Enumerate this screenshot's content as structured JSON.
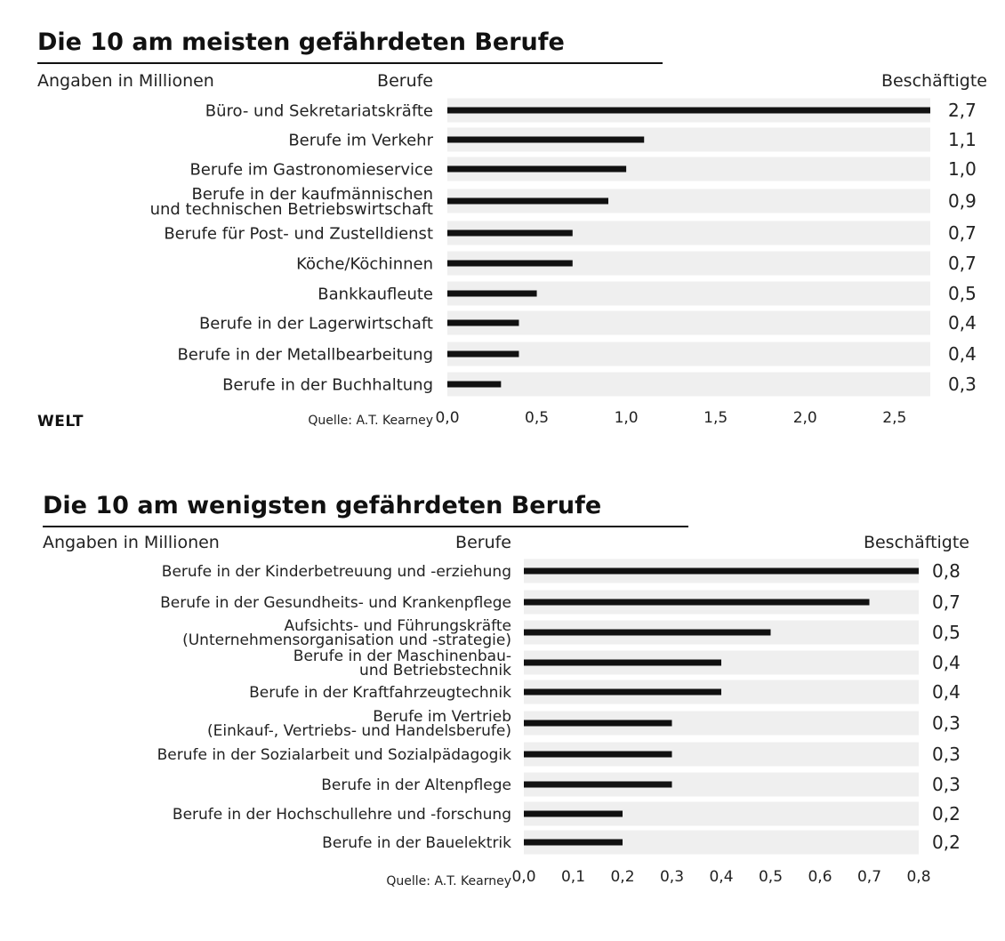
{
  "brand": {
    "logo": "WELT"
  },
  "chart_data": [
    {
      "type": "bar",
      "orientation": "horizontal",
      "title": "Die 10 am meisten gefährdeten Berufe",
      "unit_label": "Angaben in Millionen",
      "category_header": "Berufe",
      "value_header": "Beschäftigte",
      "source": "Quelle: A.T. Kearney",
      "categories": [
        "Büro- und Sekretariatskräfte",
        "Berufe im Verkehr",
        "Berufe im Gastronomieservice",
        "Berufe in der kaufmännischen\nund technischen Betriebswirtschaft",
        "Berufe für Post- und Zustelldienst",
        "Köche/Köchinnen",
        "Bankkaufleute",
        "Berufe in der Lagerwirtschaft",
        "Berufe in der Metallbearbeitung",
        "Berufe in der Buchhaltung"
      ],
      "values": [
        2.7,
        1.1,
        1.0,
        0.9,
        0.7,
        0.7,
        0.5,
        0.4,
        0.4,
        0.3
      ],
      "value_labels": [
        "2,7",
        "1,1",
        "1,0",
        "0,9",
        "0,7",
        "0,7",
        "0,5",
        "0,4",
        "0,4",
        "0,3"
      ],
      "xlim": [
        0,
        2.7
      ],
      "xticks": [
        0,
        0.5,
        1.0,
        1.5,
        2.0,
        2.5
      ],
      "xtick_labels": [
        "0,0",
        "0,5",
        "1,0",
        "1,5",
        "2,0",
        "2,5"
      ],
      "colors": {
        "bar": "#111111",
        "track": "#efefef"
      }
    },
    {
      "type": "bar",
      "orientation": "horizontal",
      "title": "Die 10 am wenigsten gefährdeten Berufe",
      "unit_label": "Angaben in Millionen",
      "category_header": "Berufe",
      "value_header": "Beschäftigte",
      "source": "Quelle: A.T. Kearney",
      "categories": [
        "Berufe in der Kinderbetreuung und -erziehung",
        "Berufe in der Gesundheits- und Krankenpflege",
        "Aufsichts- und Führungskräfte\n(Unternehmensorganisation und -strategie)",
        "Berufe in der Maschinenbau-\nund Betriebstechnik",
        "Berufe in der Kraftfahrzeugtechnik",
        "Berufe im Vertrieb\n(Einkauf-, Vertriebs- und Handelsberufe)",
        "Berufe in der Sozialarbeit und Sozialpädagogik",
        "Berufe in der Altenpflege",
        "Berufe in der Hochschullehre und -forschung",
        "Berufe in der Bauelektrik"
      ],
      "values": [
        0.8,
        0.7,
        0.5,
        0.4,
        0.4,
        0.3,
        0.3,
        0.3,
        0.2,
        0.2
      ],
      "value_labels": [
        "0,8",
        "0,7",
        "0,5",
        "0,4",
        "0,4",
        "0,3",
        "0,3",
        "0,3",
        "0,2",
        "0,2"
      ],
      "xlim": [
        0,
        0.8
      ],
      "xticks": [
        0,
        0.1,
        0.2,
        0.3,
        0.4,
        0.5,
        0.6,
        0.7,
        0.8
      ],
      "xtick_labels": [
        "0,0",
        "0,1",
        "0,2",
        "0,3",
        "0,4",
        "0,5",
        "0,6",
        "0,7",
        "0,8"
      ],
      "colors": {
        "bar": "#111111",
        "track": "#efefef"
      }
    }
  ]
}
